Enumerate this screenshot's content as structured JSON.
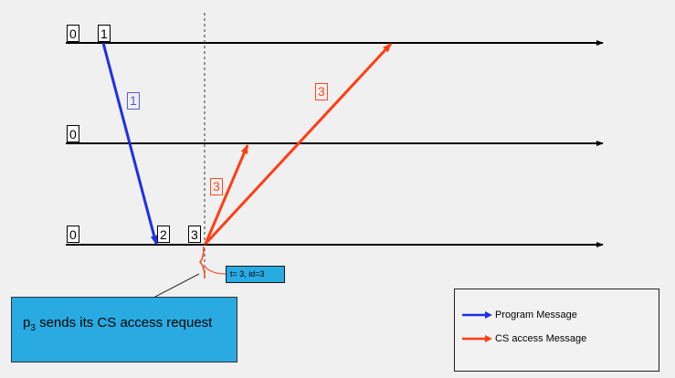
{
  "processes": [
    {
      "clocks": [
        "0",
        "1"
      ]
    },
    {
      "clocks": [
        "0"
      ]
    },
    {
      "clocks": [
        "0",
        "2",
        "3"
      ]
    }
  ],
  "messages": {
    "program_label": "1",
    "cs_label_short": "3",
    "cs_label_long": "3"
  },
  "timestamp_note": "t= 3, id=3",
  "callout": {
    "process": "p",
    "process_index": "3",
    "text": " sends its CS access request"
  },
  "legend": {
    "program": {
      "label": "Program Message",
      "color": "#1f2ee8"
    },
    "cs_access": {
      "label": "CS access Message",
      "color": "#ff3d12"
    }
  },
  "colors": {
    "program": "#1f2ee8",
    "cs_access": "#ff3d12",
    "timeline": "#000000",
    "highlight": "#29abe2"
  }
}
